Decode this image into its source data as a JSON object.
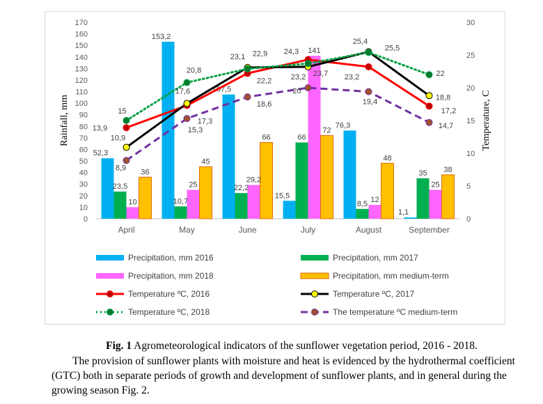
{
  "chart_data": {
    "type": "bar",
    "categories": [
      "April",
      "May",
      "June",
      "July",
      "August",
      "September"
    ],
    "ylabel": "Rainfall, mm",
    "y2label": "Temperature, C",
    "ylim": [
      0,
      170
    ],
    "y2lim": [
      0,
      30
    ],
    "yticks": [
      "0",
      "10",
      "20",
      "30",
      "40",
      "50",
      "60",
      "70",
      "80",
      "90",
      "100",
      "110",
      "120",
      "130",
      "140",
      "150",
      "160",
      "170"
    ],
    "y2ticks": [
      "0",
      "5",
      "10",
      "15",
      "20",
      "25",
      "30"
    ],
    "grid": false,
    "legend_position": "bottom",
    "bar_series": [
      {
        "name": "Precipitation, mm 2016",
        "color": "#00b0f0",
        "values": [
          52.3,
          153.2,
          107.5,
          15.5,
          76.3,
          1.1
        ],
        "labels": [
          "52,3",
          "153,2",
          "107,5",
          "15,5",
          "76,3",
          "1,1"
        ]
      },
      {
        "name": "Precipitation, mm 2017",
        "color": "#00b050",
        "values": [
          23.5,
          10.7,
          22.2,
          66,
          8.5,
          35
        ],
        "labels": [
          "23,5",
          "10,7",
          "22,2",
          "66",
          "8,5",
          "35"
        ]
      },
      {
        "name": "Precipitation, mm 2018",
        "color": "#ff66ff",
        "values": [
          10,
          25,
          29.2,
          141,
          12,
          25
        ],
        "labels": [
          "10",
          "25",
          "29,2",
          "141",
          "12",
          "25"
        ]
      },
      {
        "name": "Precipitation, mm medium-term",
        "color": "#ffc000",
        "stroke": "#e26b0a",
        "values": [
          36,
          45,
          66,
          72,
          48,
          38
        ],
        "labels": [
          "36",
          "45",
          "66",
          "72",
          "48",
          "38"
        ]
      }
    ],
    "line_series": [
      {
        "name": "Temperature ºC, 2016",
        "color": "#ff0000",
        "marker": "#c00000",
        "dash": "solid",
        "values": [
          13.9,
          17.3,
          22.2,
          24.3,
          23.2,
          17.2
        ],
        "labels": [
          "13,9",
          "17,3",
          "22,2",
          "24,3",
          "23,2",
          "17,2"
        ]
      },
      {
        "name": "Temperature ºC, 2017",
        "color": "#000000",
        "marker": "#ffff00",
        "dash": "solid",
        "values": [
          10.9,
          17.6,
          23.1,
          23.2,
          25.5,
          18.8
        ],
        "labels": [
          "10,9",
          "17,6",
          "23,1",
          "23,2",
          "25,5",
          "18,8"
        ]
      },
      {
        "name": "Temperature ºC, 2018",
        "color": "#00a040",
        "marker": "#007a30",
        "dash": "dotted",
        "values": [
          15,
          20.8,
          22.9,
          23.7,
          25.4,
          22
        ],
        "labels": [
          "15",
          "20,8",
          "22,9",
          "23,7",
          "25,4",
          "22"
        ]
      },
      {
        "name": "The temperature ºC medium-term",
        "color": "#7030a0",
        "marker": "#a0522d",
        "dash": "dashed",
        "values": [
          8.9,
          15.3,
          18.6,
          20,
          19.4,
          14.7
        ],
        "labels": [
          "8,9",
          "15,3",
          "18,6",
          "20",
          "19,4",
          "14,7"
        ]
      }
    ]
  },
  "caption": {
    "fig_label": "Fig. 1",
    "fig_text": " Agrometeorological indicators of the sunflower vegetation period, 2016 - 2018.",
    "paragraph": "The provision of sunflower plants with moisture and heat is evidenced by the hydrothermal coefficient (GTC) both in separate periods of growth and development of sunflower plants, and in general during the growing season Fig. 2."
  }
}
